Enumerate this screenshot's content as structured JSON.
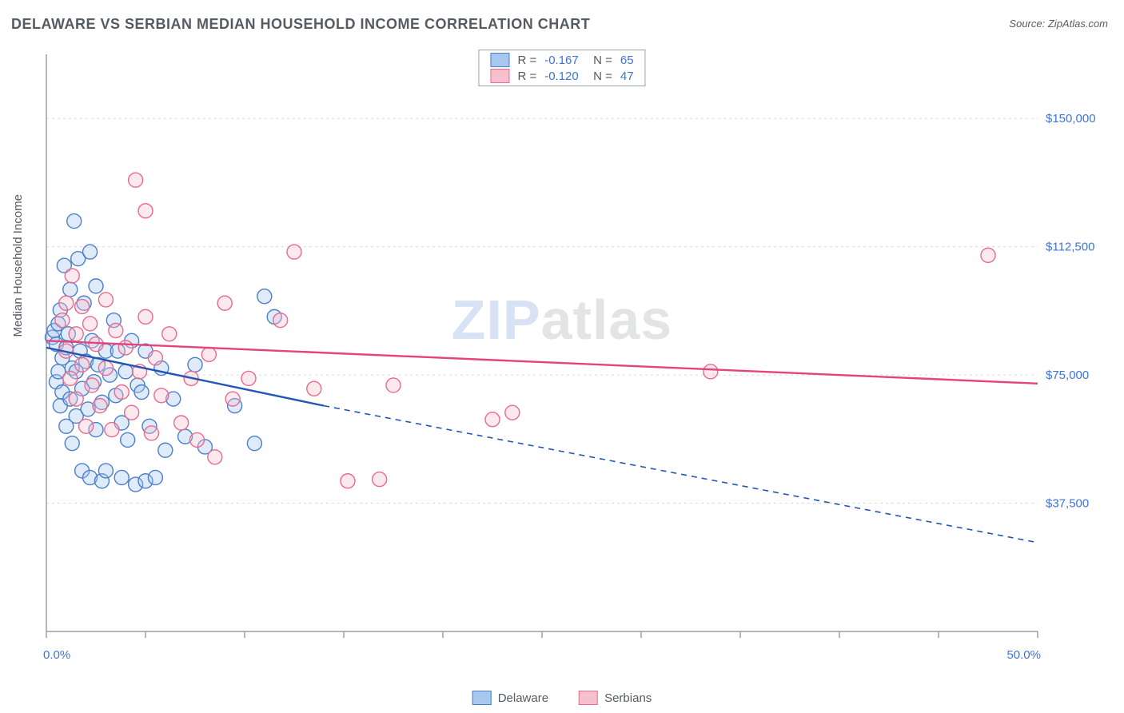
{
  "title": "DELAWARE VS SERBIAN MEDIAN HOUSEHOLD INCOME CORRELATION CHART",
  "source_label": "Source:",
  "source_value": "ZipAtlas.com",
  "watermark_a": "ZIP",
  "watermark_b": "atlas",
  "chart": {
    "type": "scatter",
    "background_color": "#ffffff",
    "grid_color": "#d8dbdf",
    "axis_color": "#9aa0a6",
    "tick_color": "#9aa0a6",
    "tick_label_color": "#3e74d8",
    "axis_label_color": "#555b63",
    "y_axis_label": "Median Household Income",
    "xlim": [
      0,
      50
    ],
    "ylim": [
      0,
      168750
    ],
    "x_tick_positions": [
      0,
      5,
      10,
      15,
      20,
      25,
      30,
      35,
      40,
      45,
      50
    ],
    "x_tick_labels_shown": {
      "0": "0.0%",
      "50": "50.0%"
    },
    "y_gridlines": [
      37500,
      75000,
      112500,
      150000
    ],
    "y_tick_labels": {
      "37500": "$37,500",
      "75000": "$75,000",
      "112500": "$112,500",
      "150000": "$150,000"
    },
    "marker_radius": 9,
    "marker_fill_opacity": 0.35,
    "marker_stroke_width": 1.4,
    "series": [
      {
        "name": "Delaware",
        "color_fill": "#a7c7ef",
        "color_stroke": "#4b7fc9",
        "trend_color": "#2256b3",
        "R": "-0.167",
        "N": "65",
        "trend": {
          "x1": 0,
          "y1": 83000,
          "x2_solid": 14,
          "y2_solid": 66000,
          "x2_dash": 50,
          "y2_dash": 26000
        },
        "points": [
          [
            0.3,
            86000
          ],
          [
            0.4,
            88000
          ],
          [
            0.5,
            84000
          ],
          [
            0.5,
            73000
          ],
          [
            0.6,
            90000
          ],
          [
            0.6,
            76000
          ],
          [
            0.7,
            94000
          ],
          [
            0.7,
            66000
          ],
          [
            0.8,
            80000
          ],
          [
            0.8,
            70000
          ],
          [
            0.9,
            107000
          ],
          [
            1.0,
            83000
          ],
          [
            1.0,
            60000
          ],
          [
            1.1,
            87000
          ],
          [
            1.2,
            100000
          ],
          [
            1.2,
            68000
          ],
          [
            1.3,
            77000
          ],
          [
            1.3,
            55000
          ],
          [
            1.4,
            120000
          ],
          [
            1.5,
            76000
          ],
          [
            1.5,
            63000
          ],
          [
            1.6,
            109000
          ],
          [
            1.7,
            82000
          ],
          [
            1.8,
            71000
          ],
          [
            1.8,
            47000
          ],
          [
            1.9,
            96000
          ],
          [
            2.0,
            79000
          ],
          [
            2.1,
            65000
          ],
          [
            2.2,
            111000
          ],
          [
            2.2,
            45000
          ],
          [
            2.3,
            85000
          ],
          [
            2.4,
            73000
          ],
          [
            2.5,
            59000
          ],
          [
            2.5,
            101000
          ],
          [
            2.6,
            78000
          ],
          [
            2.8,
            67000
          ],
          [
            2.8,
            44000
          ],
          [
            3.0,
            82000
          ],
          [
            3.0,
            47000
          ],
          [
            3.2,
            75000
          ],
          [
            3.4,
            91000
          ],
          [
            3.5,
            69000
          ],
          [
            3.6,
            82000
          ],
          [
            3.8,
            45000
          ],
          [
            3.8,
            61000
          ],
          [
            4.0,
            76000
          ],
          [
            4.1,
            56000
          ],
          [
            4.3,
            85000
          ],
          [
            4.5,
            43000
          ],
          [
            4.6,
            72000
          ],
          [
            4.8,
            70000
          ],
          [
            5.0,
            44000
          ],
          [
            5.0,
            82000
          ],
          [
            5.2,
            60000
          ],
          [
            5.5,
            45000
          ],
          [
            5.8,
            77000
          ],
          [
            6.0,
            53000
          ],
          [
            6.4,
            68000
          ],
          [
            7.0,
            57000
          ],
          [
            7.5,
            78000
          ],
          [
            8.0,
            54000
          ],
          [
            9.5,
            66000
          ],
          [
            10.5,
            55000
          ],
          [
            11.0,
            98000
          ],
          [
            11.5,
            92000
          ]
        ]
      },
      {
        "name": "Serbians",
        "color_fill": "#f6c1cf",
        "color_stroke": "#e96a8e",
        "trend_color": "#e6427b",
        "R": "-0.120",
        "N": "47",
        "trend": {
          "x1": 0,
          "y1": 85000,
          "x2_solid": 50,
          "y2_solid": 72500,
          "x2_dash": 50,
          "y2_dash": 72500
        },
        "points": [
          [
            0.8,
            91000
          ],
          [
            1.0,
            96000
          ],
          [
            1.0,
            82000
          ],
          [
            1.2,
            74000
          ],
          [
            1.3,
            104000
          ],
          [
            1.5,
            87000
          ],
          [
            1.5,
            68000
          ],
          [
            1.8,
            95000
          ],
          [
            1.8,
            78000
          ],
          [
            2.0,
            60000
          ],
          [
            2.2,
            90000
          ],
          [
            2.3,
            72000
          ],
          [
            2.5,
            84000
          ],
          [
            2.7,
            66000
          ],
          [
            3.0,
            97000
          ],
          [
            3.0,
            77000
          ],
          [
            3.3,
            59000
          ],
          [
            3.5,
            88000
          ],
          [
            3.8,
            70000
          ],
          [
            4.0,
            83000
          ],
          [
            4.3,
            64000
          ],
          [
            4.5,
            132000
          ],
          [
            4.7,
            76000
          ],
          [
            5.0,
            92000
          ],
          [
            5.0,
            123000
          ],
          [
            5.3,
            58000
          ],
          [
            5.5,
            80000
          ],
          [
            5.8,
            69000
          ],
          [
            6.2,
            87000
          ],
          [
            6.8,
            61000
          ],
          [
            7.3,
            74000
          ],
          [
            7.6,
            56000
          ],
          [
            8.2,
            81000
          ],
          [
            8.5,
            51000
          ],
          [
            9.0,
            96000
          ],
          [
            9.4,
            68000
          ],
          [
            10.2,
            74000
          ],
          [
            11.8,
            91000
          ],
          [
            12.5,
            111000
          ],
          [
            13.5,
            71000
          ],
          [
            15.2,
            44000
          ],
          [
            16.8,
            44500
          ],
          [
            17.5,
            72000
          ],
          [
            22.5,
            62000
          ],
          [
            23.5,
            64000
          ],
          [
            33.5,
            76000
          ],
          [
            47.5,
            110000
          ]
        ]
      }
    ],
    "legend_bottom": [
      {
        "label": "Delaware",
        "fill": "#a7c7ef",
        "stroke": "#4b7fc9"
      },
      {
        "label": "Serbians",
        "fill": "#f6c1cf",
        "stroke": "#e96a8e"
      }
    ]
  }
}
